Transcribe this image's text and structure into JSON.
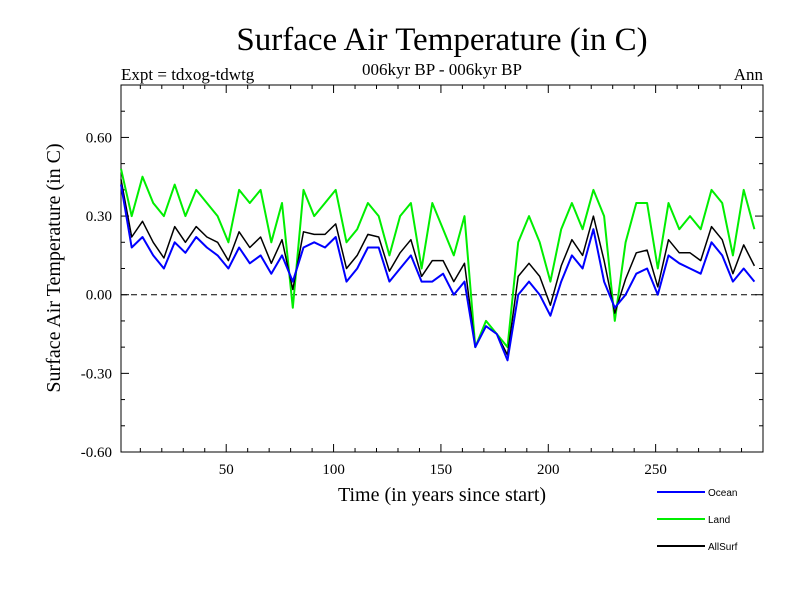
{
  "chart_data": {
    "type": "line",
    "title": "Surface Air Temperature (in C)",
    "subtitle": "006kyr BP - 006kyr BP",
    "top_left_label": "Expt = tdxog-tdwtg",
    "top_right_label": "Ann",
    "xlabel": "Time (in years since start)",
    "ylabel": "Surface Air Temperature (in C)",
    "xlim": [
      1,
      300
    ],
    "ylim": [
      -0.6,
      0.8
    ],
    "xticks": [
      50,
      100,
      150,
      200,
      250
    ],
    "xtick_labels": [
      "50",
      "100",
      "150",
      "200",
      "250"
    ],
    "yticks": [
      -0.6,
      -0.3,
      0.0,
      0.3,
      0.6
    ],
    "ytick_labels": [
      "-0.60",
      "-0.30",
      "0.00",
      "0.30",
      "0.60"
    ],
    "zero_line": "dashed",
    "legend_position": "bottom-right",
    "series_x_start": 1,
    "series_x_step": 5,
    "series": [
      {
        "name": "Ocean",
        "color": "#0000ff",
        "values": [
          0.42,
          0.18,
          0.22,
          0.15,
          0.1,
          0.2,
          0.16,
          0.22,
          0.18,
          0.15,
          0.1,
          0.18,
          0.12,
          0.15,
          0.08,
          0.15,
          0.05,
          0.18,
          0.2,
          0.18,
          0.22,
          0.05,
          0.1,
          0.18,
          0.18,
          0.05,
          0.1,
          0.15,
          0.05,
          0.05,
          0.08,
          0.0,
          0.05,
          -0.2,
          -0.12,
          -0.15,
          -0.25,
          0.0,
          0.05,
          0.0,
          -0.08,
          0.05,
          0.15,
          0.1,
          0.25,
          0.05,
          -0.05,
          0.0,
          0.08,
          0.1,
          0.0,
          0.15,
          0.12,
          0.1,
          0.08,
          0.2,
          0.15,
          0.05,
          0.1,
          0.05
        ]
      },
      {
        "name": "Land",
        "color": "#00ee00",
        "values": [
          0.48,
          0.3,
          0.45,
          0.35,
          0.3,
          0.42,
          0.3,
          0.4,
          0.35,
          0.3,
          0.2,
          0.4,
          0.35,
          0.4,
          0.2,
          0.35,
          -0.05,
          0.4,
          0.3,
          0.35,
          0.4,
          0.2,
          0.25,
          0.35,
          0.3,
          0.15,
          0.3,
          0.35,
          0.1,
          0.35,
          0.25,
          0.15,
          0.3,
          -0.2,
          -0.1,
          -0.15,
          -0.2,
          0.2,
          0.3,
          0.2,
          0.05,
          0.25,
          0.35,
          0.25,
          0.4,
          0.3,
          -0.1,
          0.2,
          0.35,
          0.35,
          0.1,
          0.35,
          0.25,
          0.3,
          0.25,
          0.4,
          0.35,
          0.15,
          0.4,
          0.25
        ]
      },
      {
        "name": "AllSurf",
        "color": "#000000",
        "values": [
          0.44,
          0.22,
          0.28,
          0.2,
          0.14,
          0.26,
          0.2,
          0.26,
          0.22,
          0.2,
          0.13,
          0.24,
          0.18,
          0.22,
          0.12,
          0.21,
          0.02,
          0.24,
          0.23,
          0.23,
          0.27,
          0.1,
          0.15,
          0.23,
          0.22,
          0.09,
          0.16,
          0.21,
          0.07,
          0.13,
          0.13,
          0.05,
          0.12,
          -0.2,
          -0.12,
          -0.15,
          -0.23,
          0.07,
          0.12,
          0.07,
          -0.04,
          0.11,
          0.21,
          0.15,
          0.3,
          0.13,
          -0.07,
          0.06,
          0.16,
          0.17,
          0.03,
          0.21,
          0.16,
          0.16,
          0.13,
          0.26,
          0.21,
          0.08,
          0.19,
          0.11
        ]
      }
    ]
  }
}
